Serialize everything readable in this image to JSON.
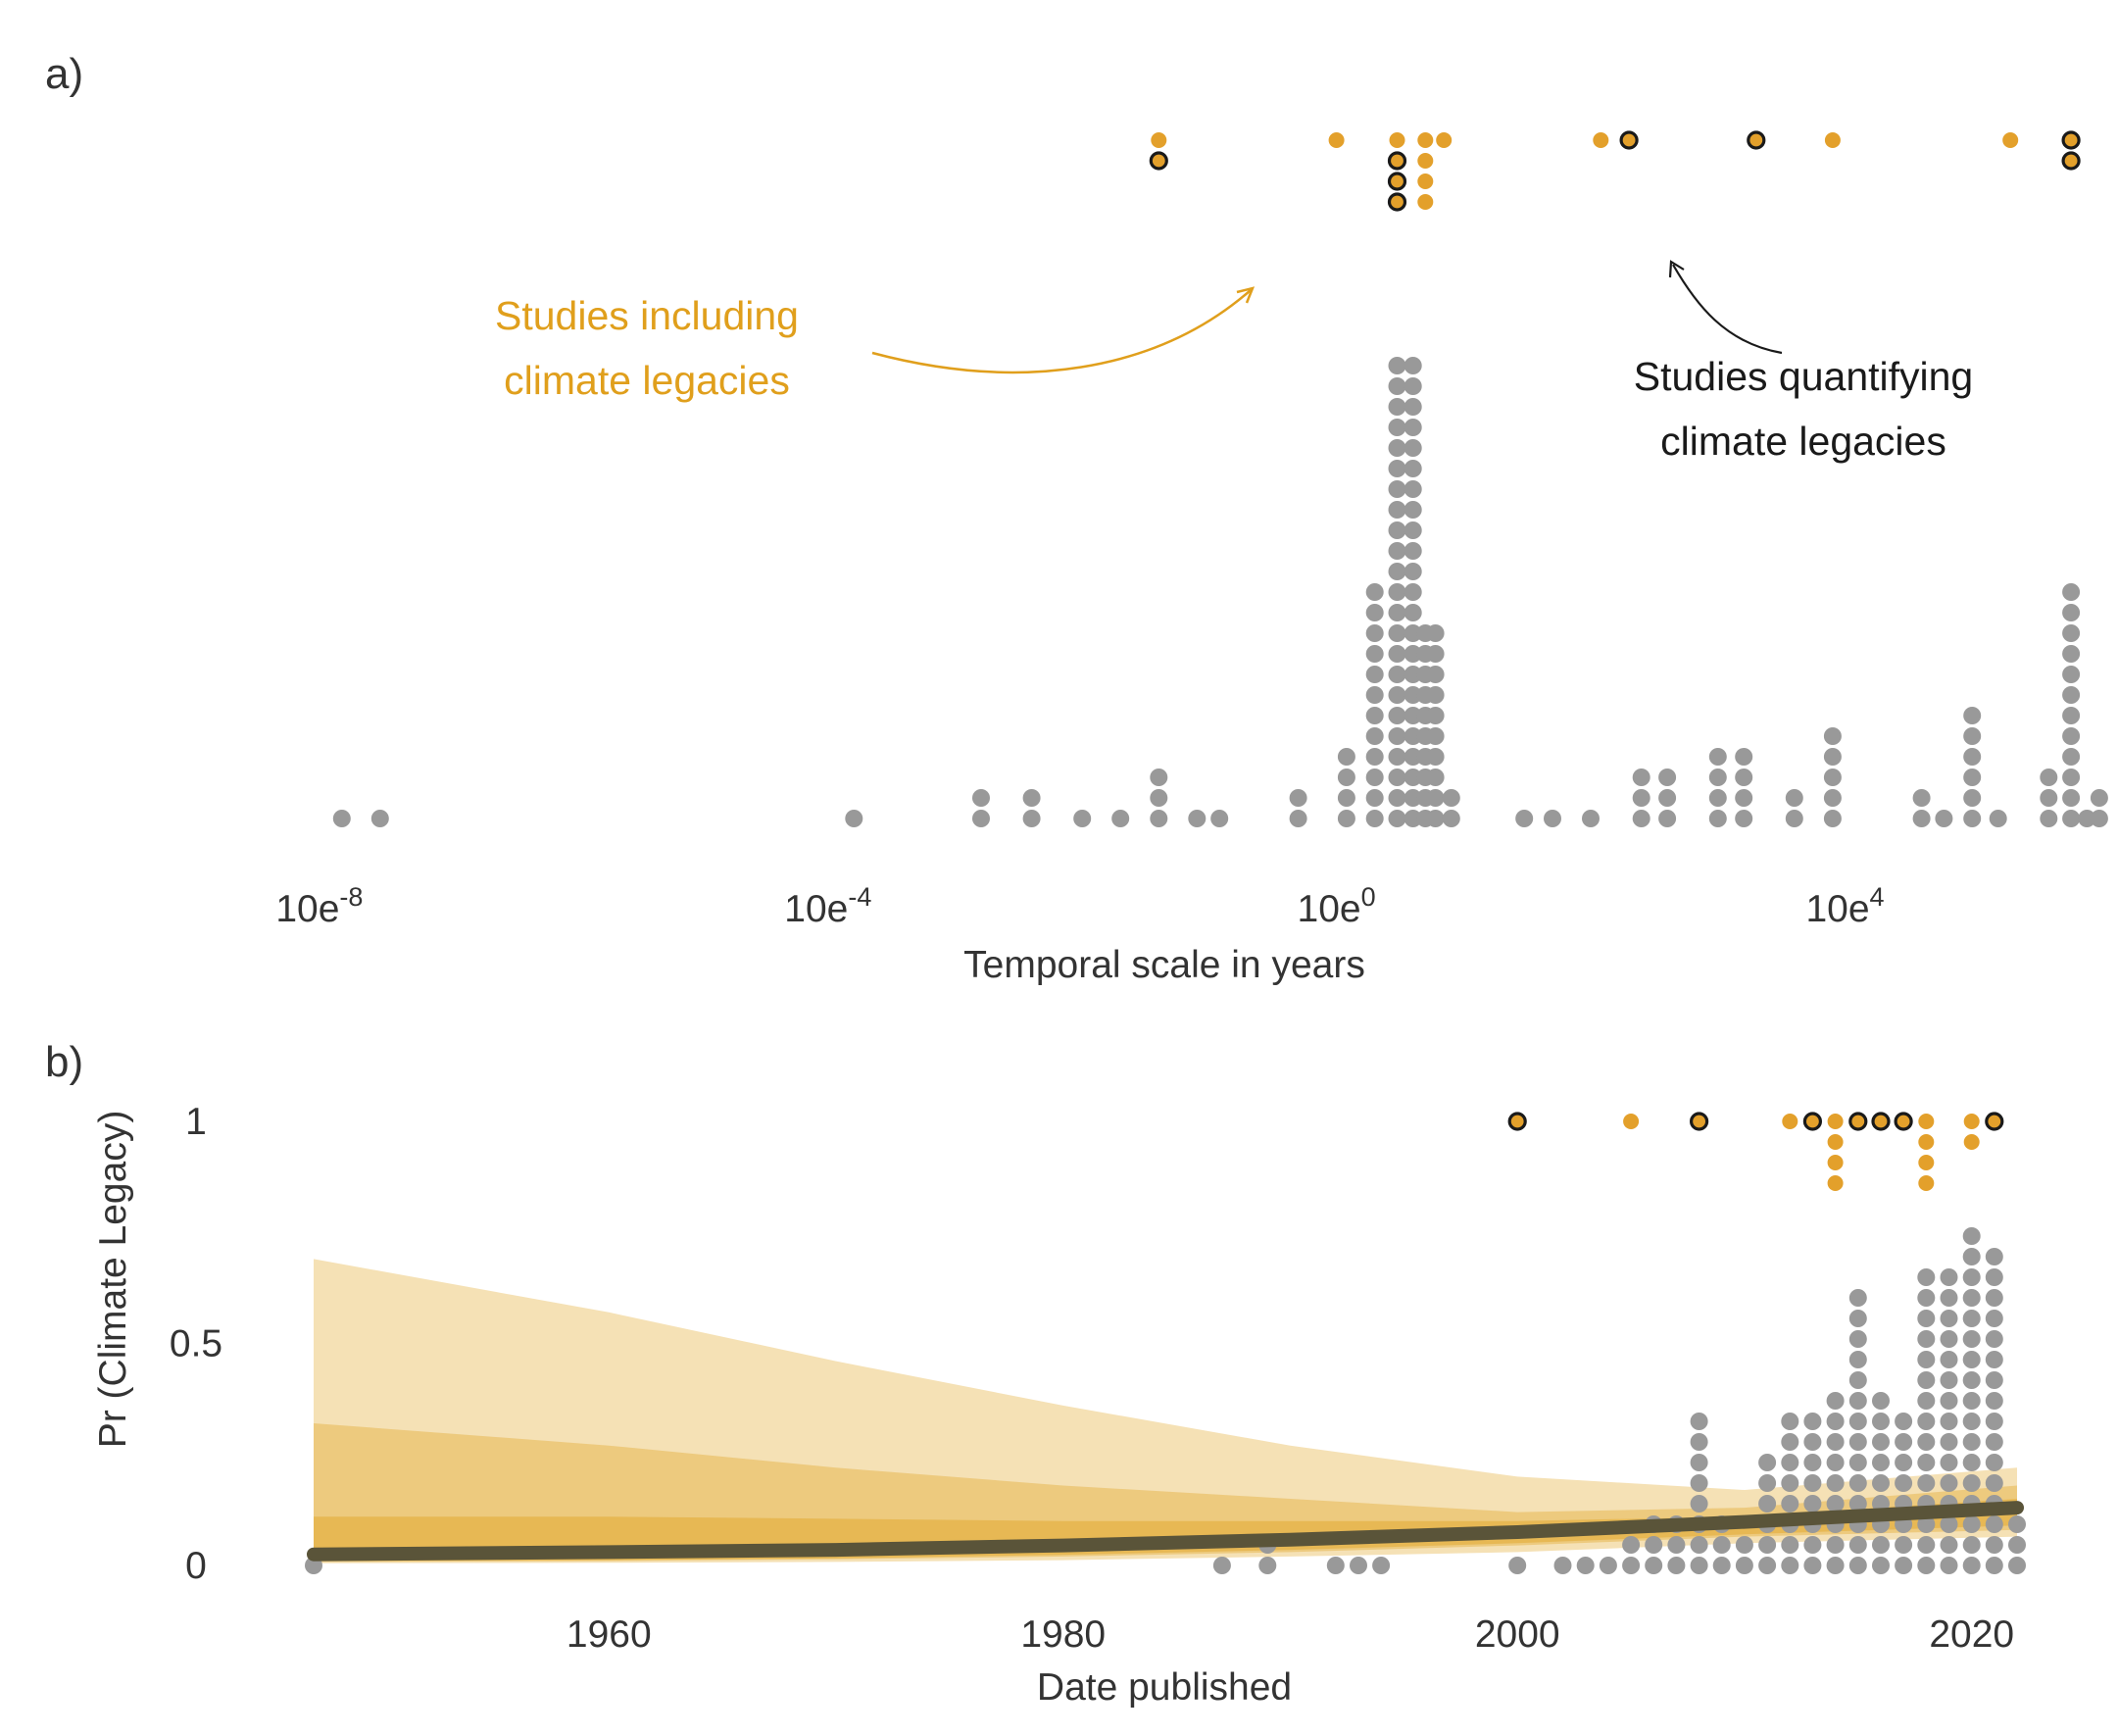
{
  "chart_data": [
    {
      "panel": "a)",
      "type": "scatter",
      "xlabel": "Temporal scale in years",
      "x_scale": "log10",
      "x_ticks": [
        {
          "value": 1e-08,
          "base": "10e",
          "exp": "-8"
        },
        {
          "value": 0.0001,
          "base": "10e",
          "exp": "-4"
        },
        {
          "value": 1,
          "base": "10e",
          "exp": "0"
        },
        {
          "value": 10000.0,
          "base": "10e",
          "exp": "4"
        }
      ],
      "xlim_log10": [
        -8.2,
        5.6
      ],
      "colors": {
        "all_studies": "#999999",
        "including": "#E3A02B",
        "quantifying_edge": "#1a1a1a"
      },
      "dotplot_all_studies": {
        "description": "dot histogram, one dot per study, value = temporal scale (years)",
        "bins": [
          {
            "x": 1.5e-08,
            "count": 1
          },
          {
            "x": 3e-08,
            "count": 1
          },
          {
            "x": 0.00016,
            "count": 1
          },
          {
            "x": 0.0016,
            "count": 2
          },
          {
            "x": 0.004,
            "count": 2
          },
          {
            "x": 0.01,
            "count": 1
          },
          {
            "x": 0.02,
            "count": 1
          },
          {
            "x": 0.04,
            "count": 3
          },
          {
            "x": 0.08,
            "count": 1
          },
          {
            "x": 0.12,
            "count": 1
          },
          {
            "x": 0.5,
            "count": 2
          },
          {
            "x": 1.2,
            "count": 4
          },
          {
            "x": 2.0,
            "count": 12
          },
          {
            "x": 3.0,
            "count": 23
          },
          {
            "x": 4.0,
            "count": 23
          },
          {
            "x": 5.0,
            "count": 10
          },
          {
            "x": 6.0,
            "count": 10
          },
          {
            "x": 8.0,
            "count": 2
          },
          {
            "x": 30,
            "count": 1
          },
          {
            "x": 50,
            "count": 1
          },
          {
            "x": 100,
            "count": 1
          },
          {
            "x": 250,
            "count": 3
          },
          {
            "x": 400,
            "count": 3
          },
          {
            "x": 1000,
            "count": 4
          },
          {
            "x": 1600,
            "count": 4
          },
          {
            "x": 4000,
            "count": 2
          },
          {
            "x": 8000,
            "count": 5
          },
          {
            "x": 40000,
            "count": 2
          },
          {
            "x": 60000,
            "count": 1
          },
          {
            "x": 100000,
            "count": 6
          },
          {
            "x": 160000,
            "count": 1
          },
          {
            "x": 400000,
            "count": 3
          },
          {
            "x": 600000,
            "count": 12
          },
          {
            "x": 800000,
            "count": 1
          },
          {
            "x": 1000000,
            "count": 2
          }
        ]
      },
      "dotplot_climate_legacies": {
        "description": "top row dots; filled gold = including, dark outline = quantifying",
        "bins": [
          {
            "x": 0.04,
            "stack": [
              "including",
              "quantifying"
            ]
          },
          {
            "x": 1.0,
            "stack": [
              "including"
            ]
          },
          {
            "x": 3.0,
            "stack": [
              "including",
              "quantifying",
              "quantifying",
              "quantifying"
            ]
          },
          {
            "x": 5.0,
            "stack": [
              "including",
              "including",
              "including",
              "including"
            ]
          },
          {
            "x": 7.0,
            "stack": [
              "including"
            ]
          },
          {
            "x": 120,
            "stack": [
              "including"
            ]
          },
          {
            "x": 200,
            "stack": [
              "quantifying"
            ]
          },
          {
            "x": 2000,
            "stack": [
              "quantifying"
            ]
          },
          {
            "x": 8000,
            "stack": [
              "including"
            ]
          },
          {
            "x": 200000,
            "stack": [
              "including"
            ]
          },
          {
            "x": 600000,
            "stack": [
              "quantifying",
              "quantifying"
            ]
          }
        ]
      },
      "annotations": [
        {
          "lines": [
            "Studies including",
            "climate legacies"
          ],
          "color": "#E09F1C"
        },
        {
          "lines": [
            "Studies quantifying",
            "climate legacies"
          ],
          "color": "#1a1a1a"
        }
      ]
    },
    {
      "panel": "b)",
      "type": "scatter",
      "xlabel": "Date published",
      "ylabel": "Pr (Climate Legacy)",
      "x_ticks": [
        1960,
        1980,
        2000,
        2020
      ],
      "y_ticks": [
        {
          "value": 0,
          "label": "0"
        },
        {
          "value": 0.5,
          "label": "0.5"
        },
        {
          "value": 1,
          "label": "1"
        }
      ],
      "xlim": [
        1945,
        2023.5
      ],
      "ylim": [
        0,
        1
      ],
      "fit": {
        "description": "logistic regression mean with credible bands",
        "line_color": "#5a5439",
        "x": [
          1947,
          1960,
          1970,
          1980,
          1990,
          2000,
          2010,
          2022
        ],
        "mean": [
          0.025,
          0.03,
          0.035,
          0.045,
          0.058,
          0.075,
          0.098,
          0.13
        ],
        "bands": [
          {
            "level": "outer",
            "color": "#F3DCA8",
            "lower": [
              0.005,
              0.006,
              0.008,
              0.012,
              0.02,
              0.03,
              0.05,
              0.065
            ],
            "upper": [
              0.69,
              0.57,
              0.46,
              0.36,
              0.27,
              0.2,
              0.17,
              0.22
            ]
          },
          {
            "level": "middle",
            "color": "#EBC574",
            "lower": [
              0.008,
              0.01,
              0.014,
              0.02,
              0.03,
              0.045,
              0.065,
              0.08
            ],
            "upper": [
              0.32,
              0.27,
              0.22,
              0.18,
              0.15,
              0.12,
              0.13,
              0.18
            ]
          },
          {
            "level": "inner",
            "color": "#E5B54C",
            "lower": [
              0.01,
              0.012,
              0.016,
              0.024,
              0.035,
              0.05,
              0.07,
              0.09
            ],
            "upper": [
              0.11,
              0.11,
              0.105,
              0.1,
              0.1,
              0.1,
              0.11,
              0.15
            ]
          }
        ]
      },
      "dotplot_zero": {
        "description": "studies without climate legacy, stacked from y=0 at each year",
        "bins": [
          {
            "year": 1947,
            "count": 1
          },
          {
            "year": 1987,
            "count": 1
          },
          {
            "year": 1989,
            "count": 2
          },
          {
            "year": 1992,
            "count": 1
          },
          {
            "year": 1993,
            "count": 1
          },
          {
            "year": 1994,
            "count": 1
          },
          {
            "year": 2000,
            "count": 1
          },
          {
            "year": 2002,
            "count": 1
          },
          {
            "year": 2003,
            "count": 1
          },
          {
            "year": 2004,
            "count": 1
          },
          {
            "year": 2005,
            "count": 2
          },
          {
            "year": 2006,
            "count": 3
          },
          {
            "year": 2007,
            "count": 3
          },
          {
            "year": 2008,
            "count": 8
          },
          {
            "year": 2009,
            "count": 3
          },
          {
            "year": 2010,
            "count": 2
          },
          {
            "year": 2011,
            "count": 6
          },
          {
            "year": 2012,
            "count": 8
          },
          {
            "year": 2013,
            "count": 8
          },
          {
            "year": 2014,
            "count": 9
          },
          {
            "year": 2015,
            "count": 14
          },
          {
            "year": 2016,
            "count": 9
          },
          {
            "year": 2017,
            "count": 8
          },
          {
            "year": 2018,
            "count": 15
          },
          {
            "year": 2019,
            "count": 15
          },
          {
            "year": 2020,
            "count": 17
          },
          {
            "year": 2021,
            "count": 16
          },
          {
            "year": 2022,
            "count": 3
          }
        ]
      },
      "dotplot_one": {
        "description": "studies with climate legacy, stacked down from y=1",
        "bins": [
          {
            "year": 2000,
            "stack": [
              "quantifying"
            ]
          },
          {
            "year": 2005,
            "stack": [
              "including"
            ]
          },
          {
            "year": 2008,
            "stack": [
              "quantifying"
            ]
          },
          {
            "year": 2012,
            "stack": [
              "including"
            ]
          },
          {
            "year": 2013,
            "stack": [
              "quantifying"
            ]
          },
          {
            "year": 2014,
            "stack": [
              "including",
              "including",
              "including",
              "including"
            ]
          },
          {
            "year": 2015,
            "stack": [
              "quantifying"
            ]
          },
          {
            "year": 2016,
            "stack": [
              "quantifying"
            ]
          },
          {
            "year": 2017,
            "stack": [
              "quantifying"
            ]
          },
          {
            "year": 2018,
            "stack": [
              "including",
              "including",
              "including",
              "including"
            ]
          },
          {
            "year": 2020,
            "stack": [
              "including",
              "including"
            ]
          },
          {
            "year": 2021,
            "stack": [
              "quantifying"
            ]
          }
        ]
      }
    }
  ]
}
